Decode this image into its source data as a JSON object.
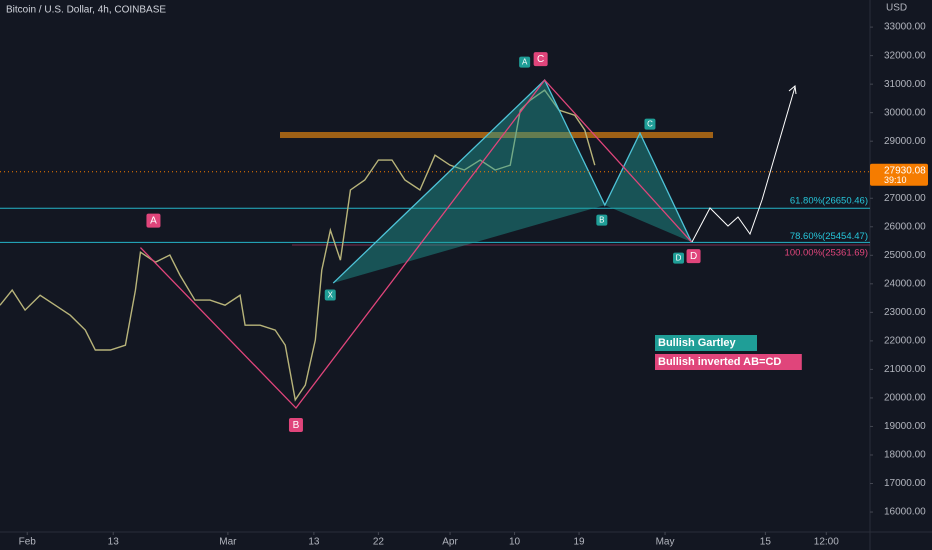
{
  "chart_data": {
    "type": "line",
    "title": "Bitcoin / U.S. Dollar, 4h, COINBASE",
    "currency": "USD",
    "xlim": [
      -3.8,
      117.6
    ],
    "ylim": [
      15300,
      33950
    ],
    "xticks": [
      {
        "value": 0,
        "label": "Feb"
      },
      {
        "value": 12,
        "label": "13"
      },
      {
        "value": 28,
        "label": "Mar"
      },
      {
        "value": 40,
        "label": "13"
      },
      {
        "value": 49,
        "label": "22"
      },
      {
        "value": 59,
        "label": "Apr"
      },
      {
        "value": 68,
        "label": "10"
      },
      {
        "value": 77,
        "label": "19"
      },
      {
        "value": 89,
        "label": "May"
      },
      {
        "value": 103,
        "label": "15"
      },
      {
        "value": 111.5,
        "label": "12:00"
      }
    ],
    "yticks": [
      {
        "value": 16000,
        "label": "16000.00"
      },
      {
        "value": 17000,
        "label": "17000.00"
      },
      {
        "value": 18000,
        "label": "18000.00"
      },
      {
        "value": 19000,
        "label": "19000.00"
      },
      {
        "value": 20000,
        "label": "20000.00"
      },
      {
        "value": 21000,
        "label": "21000.00"
      },
      {
        "value": 22000,
        "label": "22000.00"
      },
      {
        "value": 23000,
        "label": "23000.00"
      },
      {
        "value": 24000,
        "label": "24000.00"
      },
      {
        "value": 25000,
        "label": "25000.00"
      },
      {
        "value": 26000,
        "label": "26000.00"
      },
      {
        "value": 27000,
        "label": "27000.00"
      },
      {
        "value": 28000,
        "label": "28000.00"
      },
      {
        "value": 29000,
        "label": "29000.00"
      },
      {
        "value": 30000,
        "label": "30000.00"
      },
      {
        "value": 31000,
        "label": "31000.00"
      },
      {
        "value": 32000,
        "label": "32000.00"
      },
      {
        "value": 33000,
        "label": "33000.00"
      }
    ],
    "series": [
      {
        "color": "#b8b47a",
        "x": [
          -3.8,
          -2.1,
          -0.3,
          1.8,
          3.9,
          6.0,
          8.1,
          9.5,
          11.6,
          13.7,
          15.1,
          15.8,
          17.9,
          19.9,
          21.3,
          23.4,
          25.5,
          27.6,
          29.7,
          30.4,
          32.5,
          34.6,
          36.0,
          37.4,
          38.8,
          40.2,
          41.1,
          42.3,
          43.7,
          45.1,
          47.1,
          49.0,
          50.9,
          52.7,
          54.8,
          56.9,
          59.0,
          61.0,
          63.2,
          65.3,
          67.4,
          68.8,
          70.2,
          72.2,
          74.2,
          76.4,
          77.8,
          79.2
        ],
        "values": [
          23250,
          23780,
          23080,
          23600,
          23250,
          22900,
          22380,
          21680,
          21680,
          21850,
          23780,
          25110,
          24760,
          25010,
          24310,
          23430,
          23430,
          23250,
          23600,
          22550,
          22550,
          22380,
          21850,
          19930,
          20450,
          22030,
          24480,
          25880,
          24830,
          27290,
          27640,
          28340,
          28340,
          27640,
          27290,
          28510,
          28160,
          27990,
          28340,
          27990,
          28160,
          30090,
          30440,
          30790,
          30090,
          29910,
          29390,
          28160
        ]
      }
    ],
    "last_price": 27930.08,
    "countdown": "39:10",
    "levels": [
      {
        "value": 26650.46,
        "label": "61.80%(26650.46)",
        "color": "#26c6da"
      },
      {
        "value": 25454.47,
        "label": "78.60%(25454.47)",
        "color": "#26c6da"
      },
      {
        "value": 25361.69,
        "label": "100.00%(25361.69)",
        "color": "#e0457b"
      }
    ],
    "patterns": [
      {
        "name": "Bullish Gartley",
        "color": "#1f9e97",
        "labels": [
          "X",
          "A",
          "B",
          "C",
          "D"
        ],
        "x": [
          42.7,
          72.2,
          80.6,
          85.5,
          92.7
        ],
        "y": [
          24027,
          31142,
          26760,
          29284,
          25464
        ]
      },
      {
        "name": "Bullish inverted AB=CD",
        "color": "#e0457b",
        "labels": [
          "A",
          "B",
          "C",
          "D"
        ],
        "x": [
          15.8,
          37.5,
          72.2,
          92.7
        ],
        "y": [
          25270,
          19646,
          31142,
          25464
        ]
      }
    ]
  }
}
